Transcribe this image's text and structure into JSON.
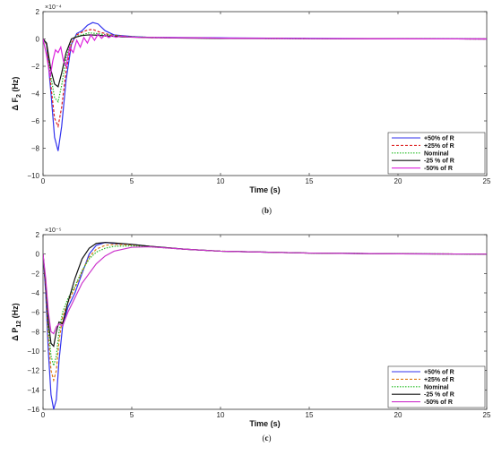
{
  "chart_data": [
    {
      "type": "line",
      "caption": "(b)",
      "multiplier": "×10⁻⁴",
      "ylabel_main": "Δ F",
      "ylabel_sub": "2",
      "ylabel_unit": " (Hz)",
      "xlabel": "Time (s)",
      "xlim": [
        0,
        25
      ],
      "ylim": [
        -10,
        2
      ],
      "xticks": [
        0,
        5,
        10,
        15,
        20,
        25
      ],
      "yticks": [
        2,
        0,
        -2,
        -4,
        -6,
        -8,
        -10
      ],
      "legend_position": "bottom-right",
      "series": [
        {
          "name": "+50% of R",
          "color": "#3333ee",
          "dash": "",
          "x": [
            0,
            0.2,
            0.45,
            0.65,
            0.85,
            1.05,
            1.3,
            1.6,
            1.9,
            2.2,
            2.5,
            2.8,
            3.1,
            3.5,
            4,
            5,
            6,
            8,
            10,
            15,
            20,
            25
          ],
          "y": [
            0,
            -0.4,
            -4,
            -7.2,
            -8.2,
            -6.4,
            -3,
            -0.4,
            0.4,
            0.6,
            1.0,
            1.2,
            1.1,
            0.6,
            0.3,
            0.18,
            0.12,
            0.1,
            0.08,
            0.04,
            0.02,
            0
          ]
        },
        {
          "name": "+25% of R",
          "color": "#dd2222",
          "dash": "3,2",
          "x": [
            0,
            0.2,
            0.45,
            0.65,
            0.85,
            1.05,
            1.3,
            1.6,
            1.9,
            2.2,
            2.5,
            2.8,
            3.2,
            3.8,
            5,
            6,
            8,
            10,
            15,
            20,
            25
          ],
          "y": [
            0,
            -0.4,
            -3.5,
            -5.8,
            -6.4,
            -5.0,
            -2.3,
            -0.3,
            0.3,
            0.5,
            0.65,
            0.7,
            0.5,
            0.3,
            0.15,
            0.1,
            0.08,
            0.06,
            0.03,
            0.01,
            0
          ]
        },
        {
          "name": "Nominal",
          "color": "#22bb22",
          "dash": "1.5,1.5",
          "x": [
            0,
            0.2,
            0.45,
            0.65,
            0.85,
            1.05,
            1.3,
            1.6,
            1.9,
            2.2,
            2.6,
            3.0,
            3.6,
            4.5,
            6,
            8,
            10,
            15,
            20,
            25
          ],
          "y": [
            0,
            -0.4,
            -2.8,
            -4.3,
            -4.6,
            -3.4,
            -1.4,
            0,
            0.2,
            0.3,
            0.45,
            0.4,
            0.3,
            0.2,
            0.12,
            0.08,
            0.05,
            0.02,
            0.01,
            0
          ]
        },
        {
          "name": "-25 % of R",
          "color": "#111111",
          "dash": "",
          "x": [
            0,
            0.2,
            0.45,
            0.65,
            0.85,
            1.05,
            1.3,
            1.6,
            1.9,
            2.2,
            2.6,
            3.0,
            3.6,
            4.5,
            6,
            8,
            10,
            15,
            20,
            25
          ],
          "y": [
            0,
            -0.3,
            -2.3,
            -3.3,
            -3.5,
            -2.5,
            -1.0,
            0,
            0.15,
            0.25,
            0.3,
            0.28,
            0.22,
            0.15,
            0.1,
            0.06,
            0.04,
            0.02,
            0.01,
            0
          ]
        },
        {
          "name": "-50% of R",
          "color": "#dd22dd",
          "dash": "",
          "x": [
            0,
            0.2,
            0.4,
            0.55,
            0.7,
            0.85,
            1.0,
            1.15,
            1.3,
            1.5,
            1.7,
            1.9,
            2.1,
            2.3,
            2.5,
            2.7,
            2.9,
            3.1,
            3.3,
            3.5,
            3.7,
            3.9,
            4.1,
            4.4,
            4.8,
            5.5,
            7,
            10,
            15,
            20,
            25
          ],
          "y": [
            0,
            -1.2,
            -2.8,
            -1.6,
            -0.8,
            -1.0,
            -0.6,
            -1.6,
            -2.0,
            -0.6,
            -1.0,
            -0.1,
            -0.6,
            0.1,
            -0.3,
            0.3,
            -0.1,
            0.35,
            0.05,
            0.3,
            0.1,
            0.25,
            0.12,
            0.2,
            0.15,
            0.12,
            0.1,
            0.06,
            0.03,
            0.01,
            0
          ]
        }
      ]
    },
    {
      "type": "line",
      "caption": "(c)",
      "multiplier": "×10⁻⁵",
      "ylabel_main": "Δ P",
      "ylabel_sub": "12",
      "ylabel_unit": " (Hz)",
      "xlabel": "Time (s)",
      "xlim": [
        0,
        25
      ],
      "ylim": [
        -16,
        2
      ],
      "xticks": [
        0,
        5,
        10,
        15,
        20,
        25
      ],
      "yticks": [
        2,
        0,
        -2,
        -4,
        -6,
        -8,
        -10,
        -12,
        -14,
        -16
      ],
      "legend_position": "bottom-right",
      "series": [
        {
          "name": "+50% of R",
          "color": "#3333ee",
          "dash": "",
          "x": [
            0,
            0.15,
            0.3,
            0.45,
            0.6,
            0.75,
            0.9,
            1.1,
            1.4,
            1.8,
            2.2,
            2.6,
            3.0,
            3.5,
            4,
            5,
            6,
            8,
            10,
            15,
            20,
            25
          ],
          "y": [
            0,
            -4,
            -10,
            -14.5,
            -16,
            -15,
            -11,
            -7.5,
            -5.5,
            -4,
            -2,
            0,
            0.9,
            1.2,
            1.1,
            1.0,
            0.8,
            0.5,
            0.3,
            0.1,
            0.03,
            0
          ]
        },
        {
          "name": "+25% of R",
          "color": "#dd7711",
          "dash": "3,2",
          "x": [
            0,
            0.15,
            0.3,
            0.45,
            0.6,
            0.75,
            0.9,
            1.1,
            1.4,
            1.8,
            2.2,
            2.6,
            3.0,
            3.5,
            4,
            5,
            6,
            8,
            10,
            15,
            20,
            25
          ],
          "y": [
            0,
            -3.5,
            -8.5,
            -12,
            -13,
            -12,
            -9,
            -6.5,
            -5,
            -3.5,
            -1.8,
            -0.3,
            0.5,
            0.9,
            1.0,
            0.95,
            0.8,
            0.5,
            0.3,
            0.1,
            0.03,
            0
          ]
        },
        {
          "name": "Nominal",
          "color": "#22bb22",
          "dash": "1.5,1.5",
          "x": [
            0,
            0.15,
            0.3,
            0.45,
            0.6,
            0.75,
            0.9,
            1.1,
            1.4,
            1.8,
            2.2,
            2.6,
            3.0,
            3.5,
            4,
            5,
            6,
            8,
            10,
            15,
            20,
            25
          ],
          "y": [
            0,
            -3,
            -7.5,
            -10.5,
            -11.5,
            -10.5,
            -8,
            -6,
            -4.6,
            -3.3,
            -1.7,
            -0.5,
            0.2,
            0.6,
            0.8,
            0.85,
            0.75,
            0.5,
            0.3,
            0.1,
            0.03,
            0
          ]
        },
        {
          "name": "-25 % of R",
          "color": "#111111",
          "dash": "",
          "x": [
            0,
            0.15,
            0.3,
            0.45,
            0.6,
            0.75,
            0.9,
            1.1,
            1.4,
            1.8,
            2.2,
            2.6,
            3.0,
            3.5,
            4,
            5,
            6,
            8,
            10,
            15,
            20,
            25
          ],
          "y": [
            0,
            -3,
            -7,
            -9.2,
            -9.5,
            -8,
            -7,
            -7.2,
            -5,
            -2.5,
            -0.5,
            0.6,
            1.1,
            1.2,
            1.15,
            1.0,
            0.8,
            0.5,
            0.3,
            0.1,
            0.03,
            0
          ]
        },
        {
          "name": "-50% of R",
          "color": "#cc33cc",
          "dash": "",
          "x": [
            0,
            0.15,
            0.3,
            0.45,
            0.6,
            0.75,
            0.9,
            1.1,
            1.4,
            1.8,
            2.2,
            2.6,
            3.0,
            3.5,
            4,
            5,
            6,
            8,
            10,
            15,
            20,
            25
          ],
          "y": [
            0,
            -2.5,
            -6,
            -8,
            -8.2,
            -7.5,
            -7.2,
            -7.4,
            -6,
            -4.5,
            -3,
            -2,
            -1,
            -0.2,
            0.3,
            0.7,
            0.75,
            0.5,
            0.3,
            0.1,
            0.03,
            0
          ]
        }
      ]
    }
  ]
}
